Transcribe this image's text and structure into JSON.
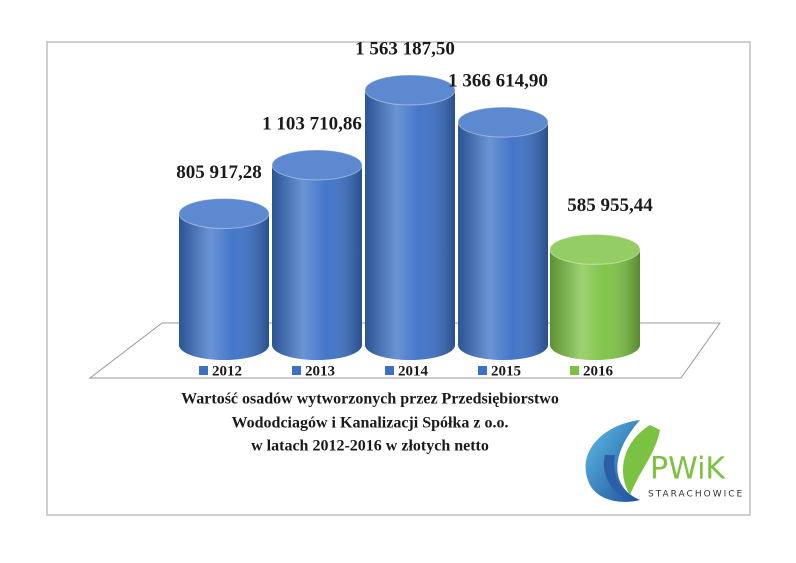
{
  "chart_data": {
    "type": "cylinder",
    "title": [
      "Wartość osadów wytworzonych przez Przedsiębiorstwo",
      "Wododciagów i Kanalizacji Spółka z o.o.",
      "w latach 2012-2016 w złotych netto"
    ],
    "categories": [
      "2012",
      "2013",
      "2014",
      "2015",
      "2016"
    ],
    "values": [
      805917.28,
      1103710.86,
      1563187.5,
      1366614.9,
      585955.44
    ],
    "value_labels": [
      "805 917,28",
      "1 103 710,86",
      "1 563 187,50",
      "1 366 614,90",
      "585 955,44"
    ],
    "colors": [
      "#3a70c6",
      "#3a70c6",
      "#3a70c6",
      "#3a70c6",
      "#7cc242"
    ],
    "legend": "bottom"
  },
  "logo": {
    "name": "PWiK",
    "subtitle": "STARACHOWICE"
  }
}
